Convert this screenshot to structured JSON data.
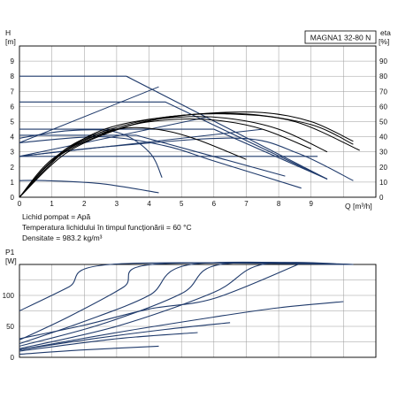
{
  "chart_data": [
    {
      "type": "line",
      "title": "MAGNA1 32-80 N",
      "xlabel": "Q [m³/h]",
      "ylabel_unit": "[m]",
      "ylabel": "H",
      "y2label": "eta",
      "y2label_unit": "[%]",
      "xlim": [
        0,
        11
      ],
      "ylim": [
        0,
        10
      ],
      "y2lim": [
        0,
        100
      ],
      "x_ticks": [
        "0",
        "1",
        "2",
        "3",
        "4",
        "5",
        "6",
        "7",
        "8",
        "9"
      ],
      "y_ticks": [
        "0",
        "1",
        "2",
        "3",
        "4",
        "5",
        "6",
        "7",
        "8",
        "9"
      ],
      "y2_ticks": [
        "0",
        "10",
        "20",
        "30",
        "40",
        "50",
        "60",
        "70",
        "80",
        "90"
      ],
      "grid": true,
      "head_curves": [
        {
          "points": [
            [
              0,
              8.0
            ],
            [
              3.3,
              8.0
            ],
            [
              9.5,
              1.2
            ]
          ]
        },
        {
          "points": [
            [
              0,
              6.3
            ],
            [
              4.5,
              6.3
            ],
            [
              9.5,
              1.2
            ]
          ]
        },
        {
          "points": [
            [
              0,
              4.5
            ],
            [
              6.0,
              4.5
            ],
            [
              9.5,
              1.2
            ]
          ]
        },
        {
          "points": [
            [
              0,
              4.1
            ],
            [
              3.6,
              4.1
            ],
            [
              8.2,
              1.4
            ]
          ]
        },
        {
          "points": [
            [
              0,
              2.7
            ],
            [
              9.2,
              2.7
            ]
          ]
        },
        {
          "points": [
            [
              0,
              1.1
            ],
            [
              0.8,
              1.1
            ],
            [
              2.5,
              0.9
            ],
            [
              4.3,
              0.3
            ]
          ]
        },
        {
          "points": [
            [
              0,
              3.9
            ],
            [
              1.5,
              4.4
            ],
            [
              3.0,
              4.3
            ],
            [
              4.0,
              3.0
            ],
            [
              4.4,
              1.3
            ]
          ]
        },
        {
          "points": [
            [
              0,
              3.6
            ],
            [
              2.5,
              4.0
            ],
            [
              4.5,
              3.4
            ],
            [
              6.0,
              2.4
            ],
            [
              8.7,
              0.6
            ]
          ]
        },
        {
          "points": [
            [
              0,
              2.7
            ],
            [
              3.0,
              3.4
            ],
            [
              6.8,
              3.9
            ],
            [
              8.6,
              2.9
            ],
            [
              10.3,
              1.1
            ]
          ]
        }
      ],
      "control_curves": [
        {
          "points": [
            [
              0,
              3.6
            ],
            [
              4.3,
              7.3
            ]
          ]
        },
        {
          "points": [
            [
              0,
              2.7
            ],
            [
              5.8,
              5.3
            ]
          ]
        },
        {
          "points": [
            [
              0,
              2.7
            ],
            [
              7.5,
              4.5
            ]
          ]
        }
      ],
      "efficiency_curves": [
        {
          "points": [
            [
              0,
              0
            ],
            [
              1.0,
              25
            ],
            [
              2.5,
              42
            ],
            [
              3.5,
              46
            ],
            [
              4.5,
              44
            ],
            [
              5.5,
              38
            ],
            [
              7.0,
              25
            ]
          ]
        },
        {
          "points": [
            [
              0,
              0
            ],
            [
              1.2,
              27
            ],
            [
              3.0,
              45
            ],
            [
              4.5,
              51
            ],
            [
              6.0,
              51
            ],
            [
              7.5,
              45
            ],
            [
              9.0,
              32
            ]
          ]
        },
        {
          "points": [
            [
              0,
              0
            ],
            [
              1.5,
              30
            ],
            [
              3.5,
              48
            ],
            [
              5.0,
              53
            ],
            [
              6.5,
              52
            ],
            [
              8.0,
              45
            ],
            [
              9.5,
              30
            ]
          ]
        },
        {
          "points": [
            [
              0,
              0
            ],
            [
              1.5,
              32
            ],
            [
              3.0,
              45
            ],
            [
              5.0,
              54
            ],
            [
              7.0,
              55
            ],
            [
              9.0,
              48
            ],
            [
              10.3,
              35
            ]
          ]
        },
        {
          "points": [
            [
              0,
              0
            ],
            [
              1.5,
              33
            ],
            [
              3.5,
              49
            ],
            [
              5.5,
              55
            ],
            [
              7.5,
              56
            ],
            [
              9.0,
              50
            ],
            [
              10.3,
              37
            ]
          ]
        },
        {
          "points": [
            [
              0,
              0
            ],
            [
              1.0,
              24
            ],
            [
              2.5,
              44
            ],
            [
              4.5,
              53
            ],
            [
              6.5,
              55
            ],
            [
              8.5,
              50
            ],
            [
              10.5,
              31
            ]
          ]
        }
      ]
    },
    {
      "type": "line",
      "ylabel": "P1",
      "ylabel_unit": "[W]",
      "xlim": [
        0,
        11
      ],
      "ylim": [
        0,
        150
      ],
      "y_ticks": [
        "0",
        "50",
        "100"
      ],
      "grid": true,
      "power_curves": [
        {
          "points": [
            [
              0,
              75
            ],
            [
              1.5,
              113
            ],
            [
              2.8,
              150
            ],
            [
              10.3,
              150
            ]
          ]
        },
        {
          "points": [
            [
              0,
              28
            ],
            [
              1.5,
              65
            ],
            [
              3.2,
              113
            ],
            [
              4.1,
              150
            ],
            [
              10.3,
              150
            ]
          ]
        },
        {
          "points": [
            [
              0,
              22
            ],
            [
              2.0,
              58
            ],
            [
              4.0,
              100
            ],
            [
              5.3,
              150
            ],
            [
              10.3,
              150
            ]
          ]
        },
        {
          "points": [
            [
              0,
              18
            ],
            [
              2.5,
              53
            ],
            [
              5.0,
              103
            ],
            [
              6.2,
              150
            ],
            [
              10.3,
              150
            ]
          ]
        },
        {
          "points": [
            [
              0,
              14
            ],
            [
              3.0,
              50
            ],
            [
              6.0,
              105
            ],
            [
              7.5,
              150
            ],
            [
              10.3,
              150
            ]
          ]
        },
        {
          "points": [
            [
              0,
              30
            ],
            [
              2.0,
              52
            ],
            [
              4.0,
              78
            ],
            [
              6.0,
              95
            ],
            [
              8.6,
              150
            ]
          ]
        },
        {
          "points": [
            [
              0,
              12
            ],
            [
              3.0,
              40
            ],
            [
              6.0,
              65
            ],
            [
              8.0,
              80
            ],
            [
              10.0,
              90
            ]
          ]
        },
        {
          "points": [
            [
              0,
              12
            ],
            [
              2.0,
              28
            ],
            [
              4.5,
              45
            ],
            [
              6.5,
              56
            ]
          ]
        },
        {
          "points": [
            [
              0,
              10
            ],
            [
              3.0,
              30
            ],
            [
              5.5,
              40
            ]
          ]
        },
        {
          "points": [
            [
              0,
              5
            ],
            [
              2.0,
              12
            ],
            [
              4.3,
              18
            ]
          ]
        }
      ]
    }
  ],
  "notes": {
    "line1": "Lichid pompat = Apă",
    "line2": "Temperatura lichidului în timpul funcționării = 60 °C",
    "line3": "Densitate = 983.2 kg/m³"
  },
  "colors": {
    "grid": "#9a9a9a",
    "axis": "#000000",
    "curve_head": "#1f3a6b",
    "curve_eff": "#000000",
    "curve_power": "#1f3a6b"
  }
}
